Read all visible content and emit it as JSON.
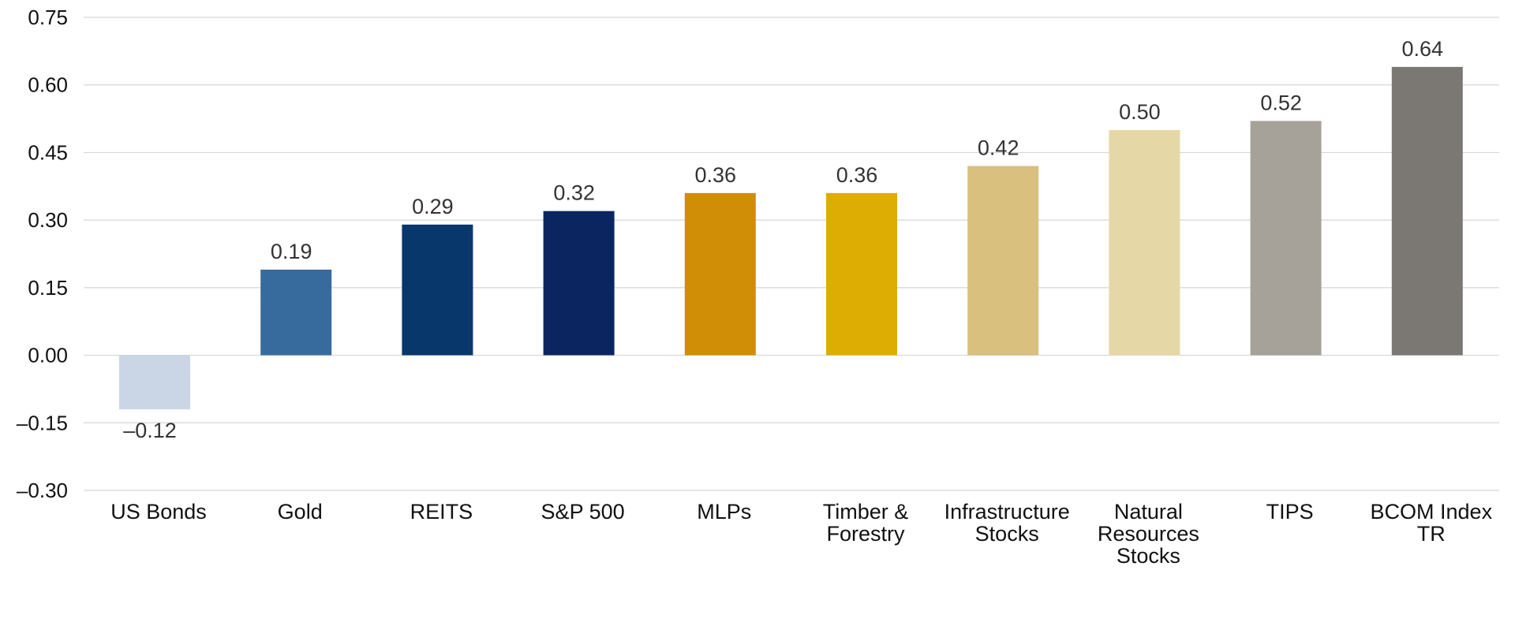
{
  "chart_data": {
    "type": "bar",
    "title": "",
    "xlabel": "",
    "ylabel": "",
    "ylim": [
      -0.3,
      0.75
    ],
    "yticks": [
      "0.75",
      "0.60",
      "0.45",
      "0.30",
      "0.15",
      "0.00",
      "–0.15",
      "–0.30"
    ],
    "ytick_values": [
      0.75,
      0.6,
      0.45,
      0.3,
      0.15,
      0.0,
      -0.15,
      -0.3
    ],
    "grid": true,
    "categories": [
      [
        "US Bonds"
      ],
      [
        "Gold"
      ],
      [
        "REITS"
      ],
      [
        "S&P 500"
      ],
      [
        "MLPs"
      ],
      [
        "Timber &",
        "Forestry"
      ],
      [
        "Infrastructure",
        "Stocks"
      ],
      [
        "Natural",
        "Resources",
        "Stocks"
      ],
      [
        "TIPS"
      ],
      [
        "BCOM Index",
        "TR"
      ]
    ],
    "values": [
      -0.12,
      0.19,
      0.29,
      0.32,
      0.36,
      0.36,
      0.42,
      0.5,
      0.52,
      0.64
    ],
    "value_labels": [
      "–0.12",
      "0.19",
      "0.29",
      "0.32",
      "0.36",
      "0.36",
      "0.42",
      "0.50",
      "0.52",
      "0.64"
    ],
    "colors": [
      "#cad6e6",
      "#376b9e",
      "#08376c",
      "#0b2560",
      "#cf8e05",
      "#ddad03",
      "#d9c07f",
      "#e6d8a6",
      "#a6a29a",
      "#7b7873"
    ]
  }
}
